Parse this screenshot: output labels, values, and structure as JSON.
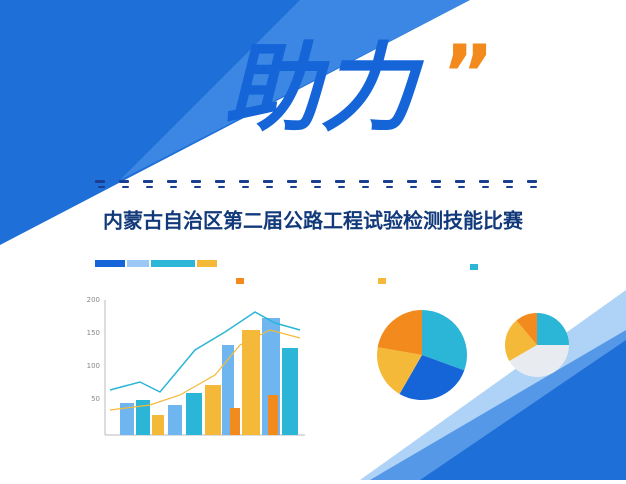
{
  "header": {
    "headline": "助力",
    "quote_mark": "”",
    "title": "内蒙古自治区第二届公路工程试验检测技能比赛"
  },
  "illustration": {
    "bar_axis_labels": [
      "200",
      "150",
      "100",
      "50"
    ]
  }
}
